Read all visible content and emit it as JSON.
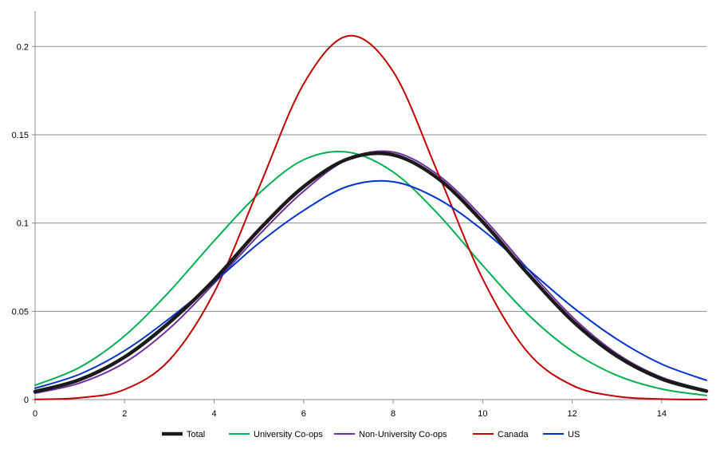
{
  "chart_data": {
    "type": "line",
    "title": "",
    "xlabel": "",
    "ylabel": "",
    "xlim": [
      0,
      15
    ],
    "ylim": [
      0,
      0.22
    ],
    "x_ticks": [
      0,
      2,
      4,
      6,
      8,
      10,
      12,
      14
    ],
    "x_tick_labels": [
      "0",
      "2",
      "4",
      "6",
      "8",
      "10",
      "12",
      "14"
    ],
    "y_ticks": [
      0,
      0.05,
      0.1,
      0.15,
      0.2
    ],
    "y_tick_labels": [
      "0",
      "0.05",
      "0.1",
      "0.15",
      "0.2"
    ],
    "grid": "horizontal",
    "legend_position": "bottom",
    "x": [
      0,
      1,
      2,
      3,
      4,
      5,
      6,
      7,
      8,
      9,
      10,
      11,
      12,
      13,
      14,
      15
    ],
    "series": [
      {
        "name": "Total",
        "color": "#1a1a1a",
        "thick": true,
        "values": [
          0.0045,
          0.0113,
          0.0241,
          0.0437,
          0.0678,
          0.0961,
          0.1206,
          0.1364,
          0.1386,
          0.1253,
          0.1007,
          0.0716,
          0.0447,
          0.0246,
          0.0117,
          0.0048
        ]
      },
      {
        "name": "University Co-ops",
        "color": "#00b050",
        "thick": false,
        "values": [
          0.0081,
          0.0183,
          0.0361,
          0.0612,
          0.0899,
          0.1167,
          0.1358,
          0.1401,
          0.1289,
          0.1052,
          0.076,
          0.0485,
          0.0274,
          0.0137,
          0.006,
          0.0023
        ]
      },
      {
        "name": "Non-University Co-ops",
        "color": "#7030a0",
        "thick": false,
        "values": [
          0.0036,
          0.0094,
          0.0209,
          0.0402,
          0.0658,
          0.0932,
          0.118,
          0.1363,
          0.1402,
          0.1273,
          0.1032,
          0.0742,
          0.0469,
          0.026,
          0.0126,
          0.0053
        ]
      },
      {
        "name": "Canada",
        "color": "#c00000",
        "thick": false,
        "values": [
          0.00012,
          0.001,
          0.0057,
          0.0224,
          0.0607,
          0.1199,
          0.1788,
          0.206,
          0.1858,
          0.1284,
          0.0684,
          0.027,
          0.0081,
          0.0018,
          0.0003,
          3e-05
        ]
      },
      {
        "name": "US",
        "color": "#0033cc",
        "thick": false,
        "values": [
          0.0064,
          0.0144,
          0.0277,
          0.0459,
          0.0665,
          0.0886,
          0.1071,
          0.1209,
          0.1234,
          0.1137,
          0.096,
          0.0742,
          0.0526,
          0.0342,
          0.0201,
          0.0109
        ]
      }
    ]
  }
}
